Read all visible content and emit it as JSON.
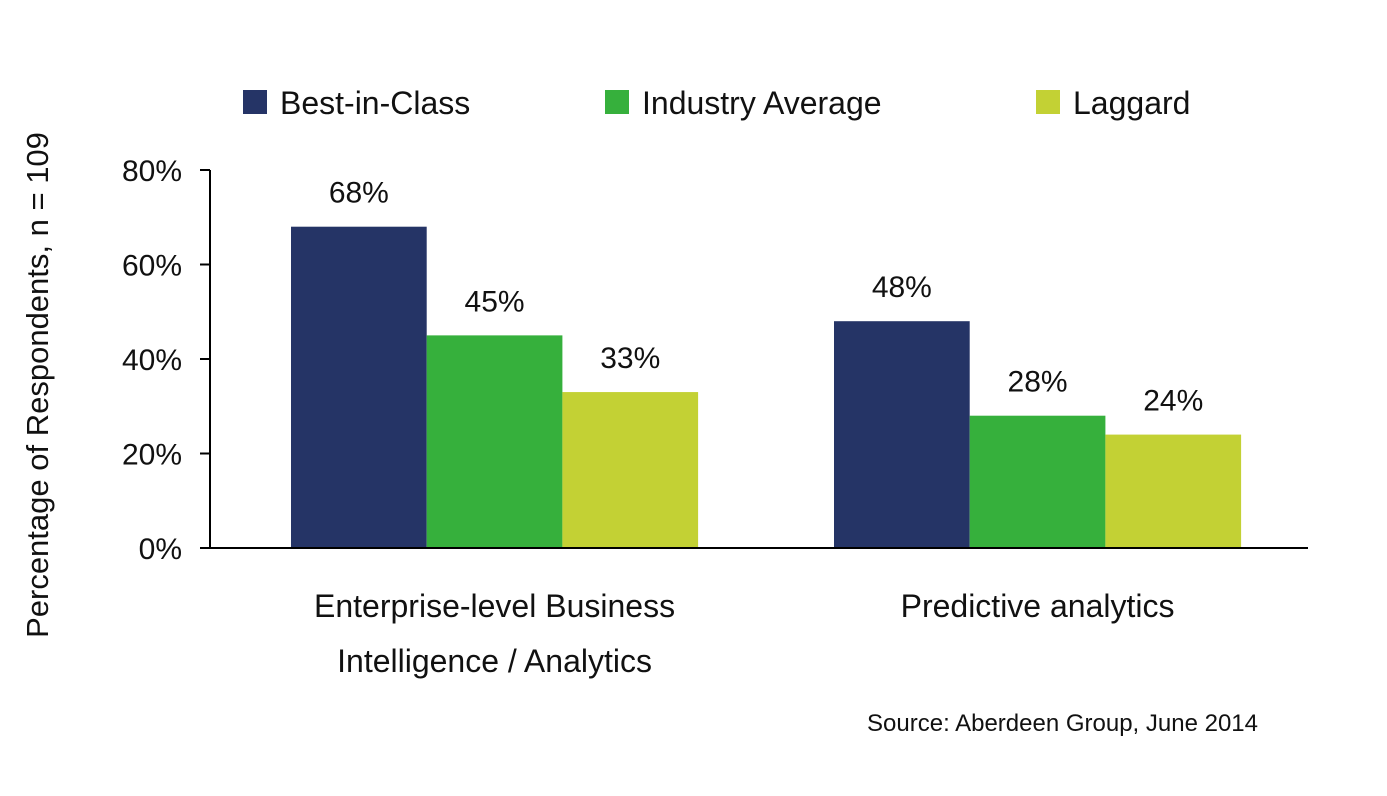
{
  "chart_data": {
    "type": "bar",
    "title": "",
    "xlabel": "",
    "ylabel": "Percentage of Respondents, n = 109",
    "ylim": [
      0,
      80
    ],
    "yticks": [
      "0%",
      "20%",
      "40%",
      "60%",
      "80%"
    ],
    "ytick_values": [
      0,
      20,
      40,
      60,
      80
    ],
    "grid": false,
    "legend_position": "top",
    "categories": [
      [
        "Enterprise-level Business",
        "Intelligence / Analytics"
      ],
      [
        "Predictive analytics"
      ]
    ],
    "series": [
      {
        "name": "Best-in-Class",
        "color": "#253466",
        "values": [
          68,
          48
        ],
        "labels": [
          "68%",
          "48%"
        ]
      },
      {
        "name": "Industry Average",
        "color": "#36b03c",
        "values": [
          45,
          28
        ],
        "labels": [
          "45%",
          "28%"
        ]
      },
      {
        "name": "Laggard",
        "color": "#c3d134",
        "values": [
          33,
          24
        ],
        "labels": [
          "33%",
          "24%"
        ]
      }
    ],
    "source": "Source: Aberdeen Group, June 2014"
  }
}
